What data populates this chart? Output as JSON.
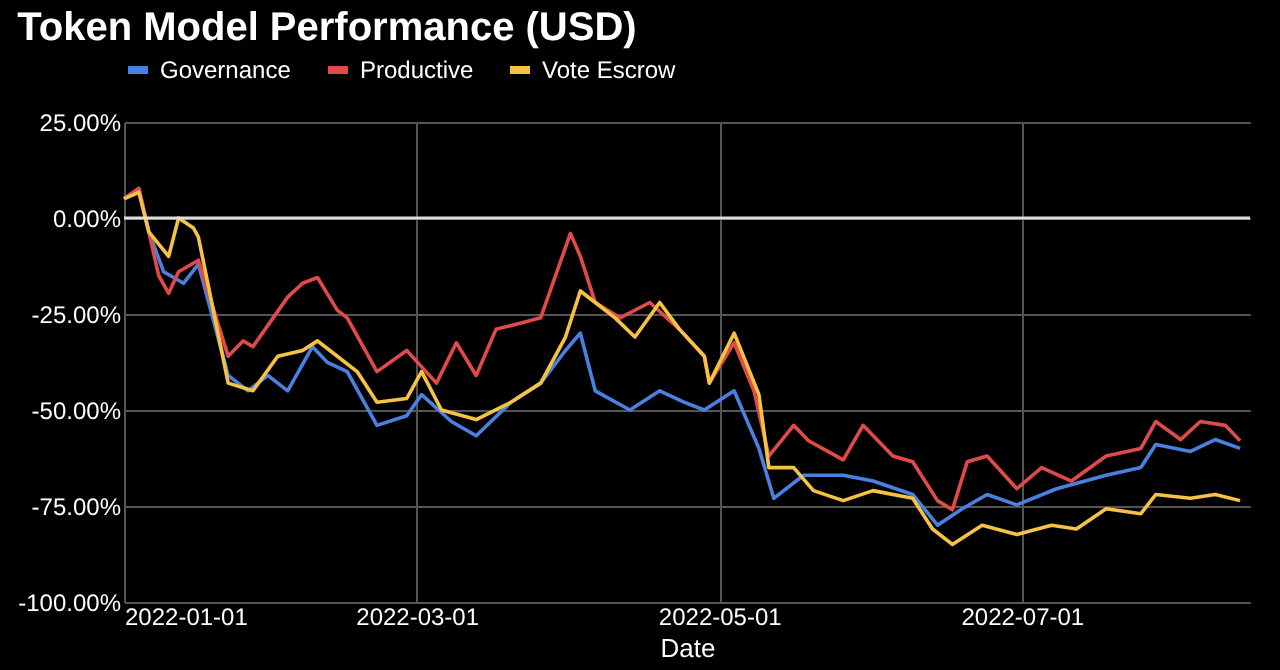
{
  "chart_data": {
    "type": "line",
    "title": "Token Model Performance (USD)",
    "xlabel": "Date",
    "series": [
      {
        "name": "Governance",
        "color": "#4a80e0",
        "x": [
          "2022-01-01",
          "2022-01-04",
          "2022-01-06",
          "2022-01-09",
          "2022-01-13",
          "2022-01-16",
          "2022-01-22",
          "2022-01-26",
          "2022-01-30",
          "2022-02-03",
          "2022-02-08",
          "2022-02-11",
          "2022-02-15",
          "2022-02-21",
          "2022-02-27",
          "2022-03-02",
          "2022-03-08",
          "2022-03-13",
          "2022-03-20",
          "2022-03-26",
          "2022-03-31",
          "2022-04-03",
          "2022-04-06",
          "2022-04-13",
          "2022-04-19",
          "2022-04-24",
          "2022-04-28",
          "2022-05-04",
          "2022-05-09",
          "2022-05-12",
          "2022-05-18",
          "2022-05-26",
          "2022-06-01",
          "2022-06-09",
          "2022-06-14",
          "2022-06-19",
          "2022-06-24",
          "2022-06-30",
          "2022-07-08",
          "2022-07-18",
          "2022-07-25",
          "2022-07-28",
          "2022-08-04",
          "2022-08-09",
          "2022-08-14"
        ],
        "values": [
          5,
          7.7,
          -3.6,
          -14,
          -17,
          -12,
          -41,
          -45,
          -41,
          -45,
          -33.5,
          -37.6,
          -40,
          -54,
          -51.5,
          -46,
          -53,
          -56.7,
          -48,
          -43,
          -34.5,
          -30,
          -45,
          -50,
          -45,
          -48,
          -50,
          -45,
          -60,
          -73,
          -67,
          -67,
          -68.5,
          -72,
          -80,
          -75.7,
          -72,
          -74.7,
          -70.5,
          -67,
          -65,
          -59,
          -60.8,
          -57.7,
          -60
        ]
      },
      {
        "name": "Productive",
        "color": "#e04a4a",
        "x": [
          "2022-01-01",
          "2022-01-04",
          "2022-01-06",
          "2022-01-08",
          "2022-01-10",
          "2022-01-12",
          "2022-01-16",
          "2022-01-22",
          "2022-01-25",
          "2022-01-27",
          "2022-02-03",
          "2022-02-06",
          "2022-02-09",
          "2022-02-13",
          "2022-02-15",
          "2022-02-21",
          "2022-02-27",
          "2022-03-05",
          "2022-03-09",
          "2022-03-13",
          "2022-03-17",
          "2022-03-23",
          "2022-03-26",
          "2022-04-01",
          "2022-04-03",
          "2022-04-06",
          "2022-04-11",
          "2022-04-17",
          "2022-04-23",
          "2022-04-28",
          "2022-04-29",
          "2022-05-04",
          "2022-05-08",
          "2022-05-11",
          "2022-05-16",
          "2022-05-19",
          "2022-05-26",
          "2022-05-30",
          "2022-06-05",
          "2022-06-09",
          "2022-06-14",
          "2022-06-17",
          "2022-06-20",
          "2022-06-24",
          "2022-06-30",
          "2022-07-05",
          "2022-07-11",
          "2022-07-18",
          "2022-07-25",
          "2022-07-28",
          "2022-08-02",
          "2022-08-06",
          "2022-08-11",
          "2022-08-14"
        ],
        "values": [
          5,
          7.7,
          -3.6,
          -15,
          -19.6,
          -14,
          -11,
          -36,
          -32,
          -33.5,
          -20.6,
          -17,
          -15.5,
          -24,
          -26,
          -40,
          -34.5,
          -43,
          -32.5,
          -41,
          -29,
          -27,
          -26,
          -4,
          -10,
          -22,
          -26,
          -22,
          -29,
          -36,
          -43,
          -32.5,
          -45,
          -62,
          -54,
          -58,
          -63,
          -54,
          -62,
          -63.5,
          -73.6,
          -76,
          -63.5,
          -62,
          -70.5,
          -65,
          -68.5,
          -62,
          -60,
          -53,
          -57.7,
          -53,
          -54,
          -58
        ]
      },
      {
        "name": "Vote Escrow",
        "color": "#f5c242",
        "x": [
          "2022-01-01",
          "2022-01-04",
          "2022-01-06",
          "2022-01-10",
          "2022-01-12",
          "2022-01-15",
          "2022-01-16",
          "2022-01-22",
          "2022-01-27",
          "2022-02-01",
          "2022-02-06",
          "2022-02-09",
          "2022-02-13",
          "2022-02-17",
          "2022-02-21",
          "2022-02-27",
          "2022-03-02",
          "2022-03-06",
          "2022-03-13",
          "2022-03-20",
          "2022-03-26",
          "2022-03-31",
          "2022-04-03",
          "2022-04-06",
          "2022-04-10",
          "2022-04-14",
          "2022-04-19",
          "2022-04-23",
          "2022-04-28",
          "2022-04-29",
          "2022-05-04",
          "2022-05-09",
          "2022-05-11",
          "2022-05-16",
          "2022-05-20",
          "2022-05-26",
          "2022-06-01",
          "2022-06-09",
          "2022-06-13",
          "2022-06-17",
          "2022-06-23",
          "2022-06-30",
          "2022-07-07",
          "2022-07-12",
          "2022-07-18",
          "2022-07-25",
          "2022-07-28",
          "2022-08-04",
          "2022-08-09",
          "2022-08-14"
        ],
        "values": [
          5,
          6.7,
          -3.6,
          -10,
          0,
          -2.6,
          -5,
          -43,
          -45,
          -36,
          -34.5,
          -32,
          -36,
          -40,
          -48,
          -47,
          -40,
          -50,
          -52.5,
          -48,
          -43,
          -31,
          -19,
          -22,
          -26,
          -31,
          -22,
          -29,
          -36,
          -43,
          -30,
          -46,
          -65,
          -65,
          -71,
          -73.6,
          -71,
          -73,
          -81,
          -85,
          -80,
          -82.4,
          -80,
          -81,
          -75.7,
          -77,
          -72,
          -73,
          -72,
          -73.6
        ]
      }
    ],
    "xlim": [
      "2022-01-01",
      "2022-08-16"
    ],
    "xticks": [
      "2022-01-01",
      "2022-03-01",
      "2022-05-01",
      "2022-07-01"
    ],
    "ylim": [
      -100,
      25
    ],
    "yticks": [
      {
        "value": 25,
        "label": "25.00%"
      },
      {
        "value": 0,
        "label": "0.00%"
      },
      {
        "value": -25,
        "label": "-25.00%"
      },
      {
        "value": -50,
        "label": "-50.00%"
      },
      {
        "value": -75,
        "label": "-75.00%"
      },
      {
        "value": -100,
        "label": "-100.00%"
      }
    ],
    "ref_lines": [
      {
        "axis": "y",
        "value": 0,
        "color": "#dddddd"
      }
    ],
    "grid": true,
    "legend": "top",
    "line_style": "solid",
    "marker": "none"
  }
}
